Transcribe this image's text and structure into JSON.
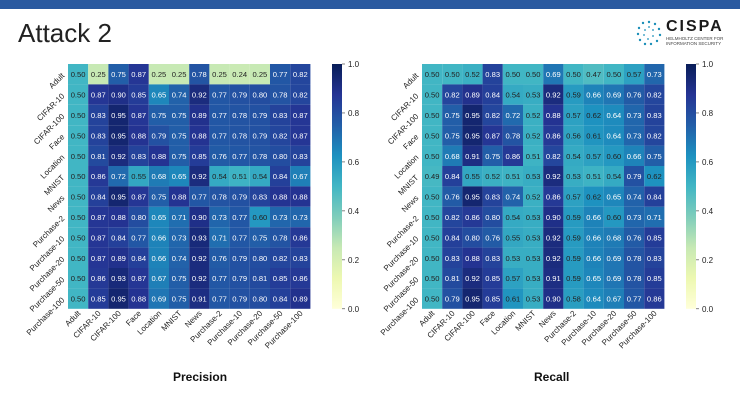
{
  "slide": {
    "title": "Attack 2",
    "logo_name": "CISPA",
    "logo_subtitle": "HELMHOLTZ CENTER FOR INFORMATION SECURITY"
  },
  "chart_data": [
    {
      "type": "heatmap",
      "xlabel": "Precision",
      "categories": [
        "Adult",
        "CIFAR-10",
        "CIFAR-100",
        "Face",
        "Location",
        "MNIST",
        "News",
        "Purchase-2",
        "Purchase-10",
        "Purchase-20",
        "Purchase-50",
        "Purchase-100"
      ],
      "colorbar": {
        "min": 0.0,
        "max": 1.0,
        "ticks": [
          "1.0",
          "0.8",
          "0.6",
          "0.4",
          "0.2",
          "0.0"
        ]
      },
      "values": [
        [
          0.5,
          0.25,
          0.75,
          0.87,
          0.25,
          0.25,
          0.78,
          0.25,
          0.24,
          0.25,
          0.77,
          0.82
        ],
        [
          0.5,
          0.87,
          0.9,
          0.85,
          0.65,
          0.74,
          0.92,
          0.77,
          0.79,
          0.8,
          0.78,
          0.82
        ],
        [
          0.5,
          0.83,
          0.95,
          0.87,
          0.75,
          0.75,
          0.89,
          0.77,
          0.78,
          0.79,
          0.83,
          0.87
        ],
        [
          0.5,
          0.83,
          0.95,
          0.88,
          0.79,
          0.75,
          0.88,
          0.77,
          0.78,
          0.79,
          0.82,
          0.87
        ],
        [
          0.5,
          0.81,
          0.92,
          0.83,
          0.88,
          0.75,
          0.85,
          0.76,
          0.77,
          0.78,
          0.8,
          0.83
        ],
        [
          0.5,
          0.86,
          0.72,
          0.55,
          0.68,
          0.65,
          0.92,
          0.54,
          0.51,
          0.54,
          0.84,
          0.67
        ],
        [
          0.5,
          0.84,
          0.95,
          0.87,
          0.75,
          0.88,
          0.77,
          0.78,
          0.79,
          0.83,
          0.88,
          0.88
        ],
        [
          0.5,
          0.87,
          0.88,
          0.8,
          0.65,
          0.71,
          0.9,
          0.73,
          0.77,
          0.6,
          0.73,
          0.73
        ],
        [
          0.5,
          0.87,
          0.84,
          0.77,
          0.66,
          0.73,
          0.93,
          0.71,
          0.77,
          0.75,
          0.78,
          0.86
        ],
        [
          0.5,
          0.87,
          0.89,
          0.84,
          0.66,
          0.74,
          0.92,
          0.76,
          0.79,
          0.8,
          0.82,
          0.83
        ],
        [
          0.5,
          0.86,
          0.93,
          0.87,
          0.67,
          0.75,
          0.92,
          0.77,
          0.79,
          0.81,
          0.85,
          0.86
        ],
        [
          0.5,
          0.85,
          0.95,
          0.88,
          0.69,
          0.75,
          0.91,
          0.77,
          0.79,
          0.8,
          0.84,
          0.89
        ]
      ]
    },
    {
      "type": "heatmap",
      "xlabel": "Recall",
      "categories": [
        "Adult",
        "CIFAR-10",
        "CIFAR-100",
        "Face",
        "Location",
        "MNIST",
        "News",
        "Purchase-2",
        "Purchase-10",
        "Purchase-20",
        "Purchase-50",
        "Purchase-100"
      ],
      "colorbar": {
        "min": 0.0,
        "max": 1.0,
        "ticks": [
          "1.0",
          "0.8",
          "0.6",
          "0.4",
          "0.2",
          "0.0"
        ]
      },
      "values": [
        [
          0.5,
          0.5,
          0.52,
          0.83,
          0.5,
          0.5,
          0.69,
          0.5,
          0.47,
          0.5,
          0.57,
          0.73
        ],
        [
          0.5,
          0.82,
          0.89,
          0.84,
          0.54,
          0.53,
          0.92,
          0.59,
          0.66,
          0.69,
          0.76,
          0.82
        ],
        [
          0.5,
          0.75,
          0.95,
          0.82,
          0.72,
          0.52,
          0.88,
          0.57,
          0.62,
          0.64,
          0.73,
          0.83
        ],
        [
          0.5,
          0.75,
          0.95,
          0.87,
          0.78,
          0.52,
          0.86,
          0.56,
          0.61,
          0.64,
          0.73,
          0.82
        ],
        [
          0.5,
          0.68,
          0.91,
          0.75,
          0.86,
          0.51,
          0.82,
          0.54,
          0.57,
          0.6,
          0.66,
          0.75
        ],
        [
          0.49,
          0.84,
          0.55,
          0.52,
          0.51,
          0.53,
          0.92,
          0.53,
          0.51,
          0.54,
          0.79,
          0.62
        ],
        [
          0.5,
          0.76,
          0.95,
          0.83,
          0.74,
          0.52,
          0.86,
          0.57,
          0.62,
          0.65,
          0.74,
          0.84
        ],
        [
          0.5,
          0.82,
          0.86,
          0.8,
          0.54,
          0.53,
          0.9,
          0.59,
          0.66,
          0.6,
          0.73,
          0.71
        ],
        [
          0.5,
          0.84,
          0.8,
          0.76,
          0.55,
          0.53,
          0.92,
          0.59,
          0.66,
          0.68,
          0.76,
          0.85
        ],
        [
          0.5,
          0.83,
          0.88,
          0.83,
          0.53,
          0.53,
          0.92,
          0.59,
          0.66,
          0.69,
          0.78,
          0.83
        ],
        [
          0.5,
          0.81,
          0.92,
          0.85,
          0.57,
          0.53,
          0.91,
          0.59,
          0.65,
          0.69,
          0.78,
          0.85
        ],
        [
          0.5,
          0.79,
          0.95,
          0.85,
          0.61,
          0.53,
          0.9,
          0.58,
          0.64,
          0.67,
          0.77,
          0.86
        ]
      ]
    }
  ]
}
